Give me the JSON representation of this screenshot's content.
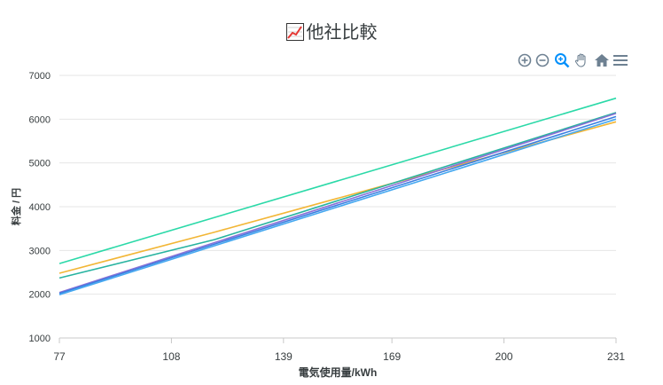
{
  "title": "他社比較",
  "toolbar": {
    "icons": [
      "zoom-in-icon",
      "zoom-out-icon",
      "selection-zoom-icon",
      "pan-icon",
      "home-icon",
      "menu-icon"
    ]
  },
  "colors": {
    "grid": "#e6e6e6",
    "axis_text": "#373d3f",
    "toolbar_icon": "#6e8192",
    "toolbar_active": "#008ffb"
  },
  "chart_data": {
    "type": "line",
    "title": "他社比較",
    "xlabel": "電気使用量/kWh",
    "ylabel": "料金 / 円",
    "x_ticks": [
      "77",
      "108",
      "139",
      "169",
      "200",
      "231"
    ],
    "y_ticks": [
      "1000",
      "2000",
      "3000",
      "4000",
      "5000",
      "6000",
      "7000"
    ],
    "xlim": [
      77,
      231
    ],
    "ylim": [
      1000,
      7000
    ],
    "grid": true,
    "legend": "none",
    "series": [
      {
        "color": "#2bd9a8",
        "x": [
          77,
          231
        ],
        "y": [
          2700,
          6480
        ]
      },
      {
        "color": "#f2b636",
        "x": [
          77,
          120,
          231
        ],
        "y": [
          2480,
          3420,
          5940
        ]
      },
      {
        "color": "#27b3a0",
        "x": [
          77,
          120,
          231
        ],
        "y": [
          2370,
          3250,
          6150
        ]
      },
      {
        "color": "#8a6fd6",
        "x": [
          77,
          231
        ],
        "y": [
          2040,
          6130
        ]
      },
      {
        "color": "#3b7fe0",
        "x": [
          77,
          231
        ],
        "y": [
          2020,
          6060
        ]
      },
      {
        "color": "#45a8f0",
        "x": [
          77,
          231
        ],
        "y": [
          1990,
          6000
        ]
      }
    ]
  }
}
